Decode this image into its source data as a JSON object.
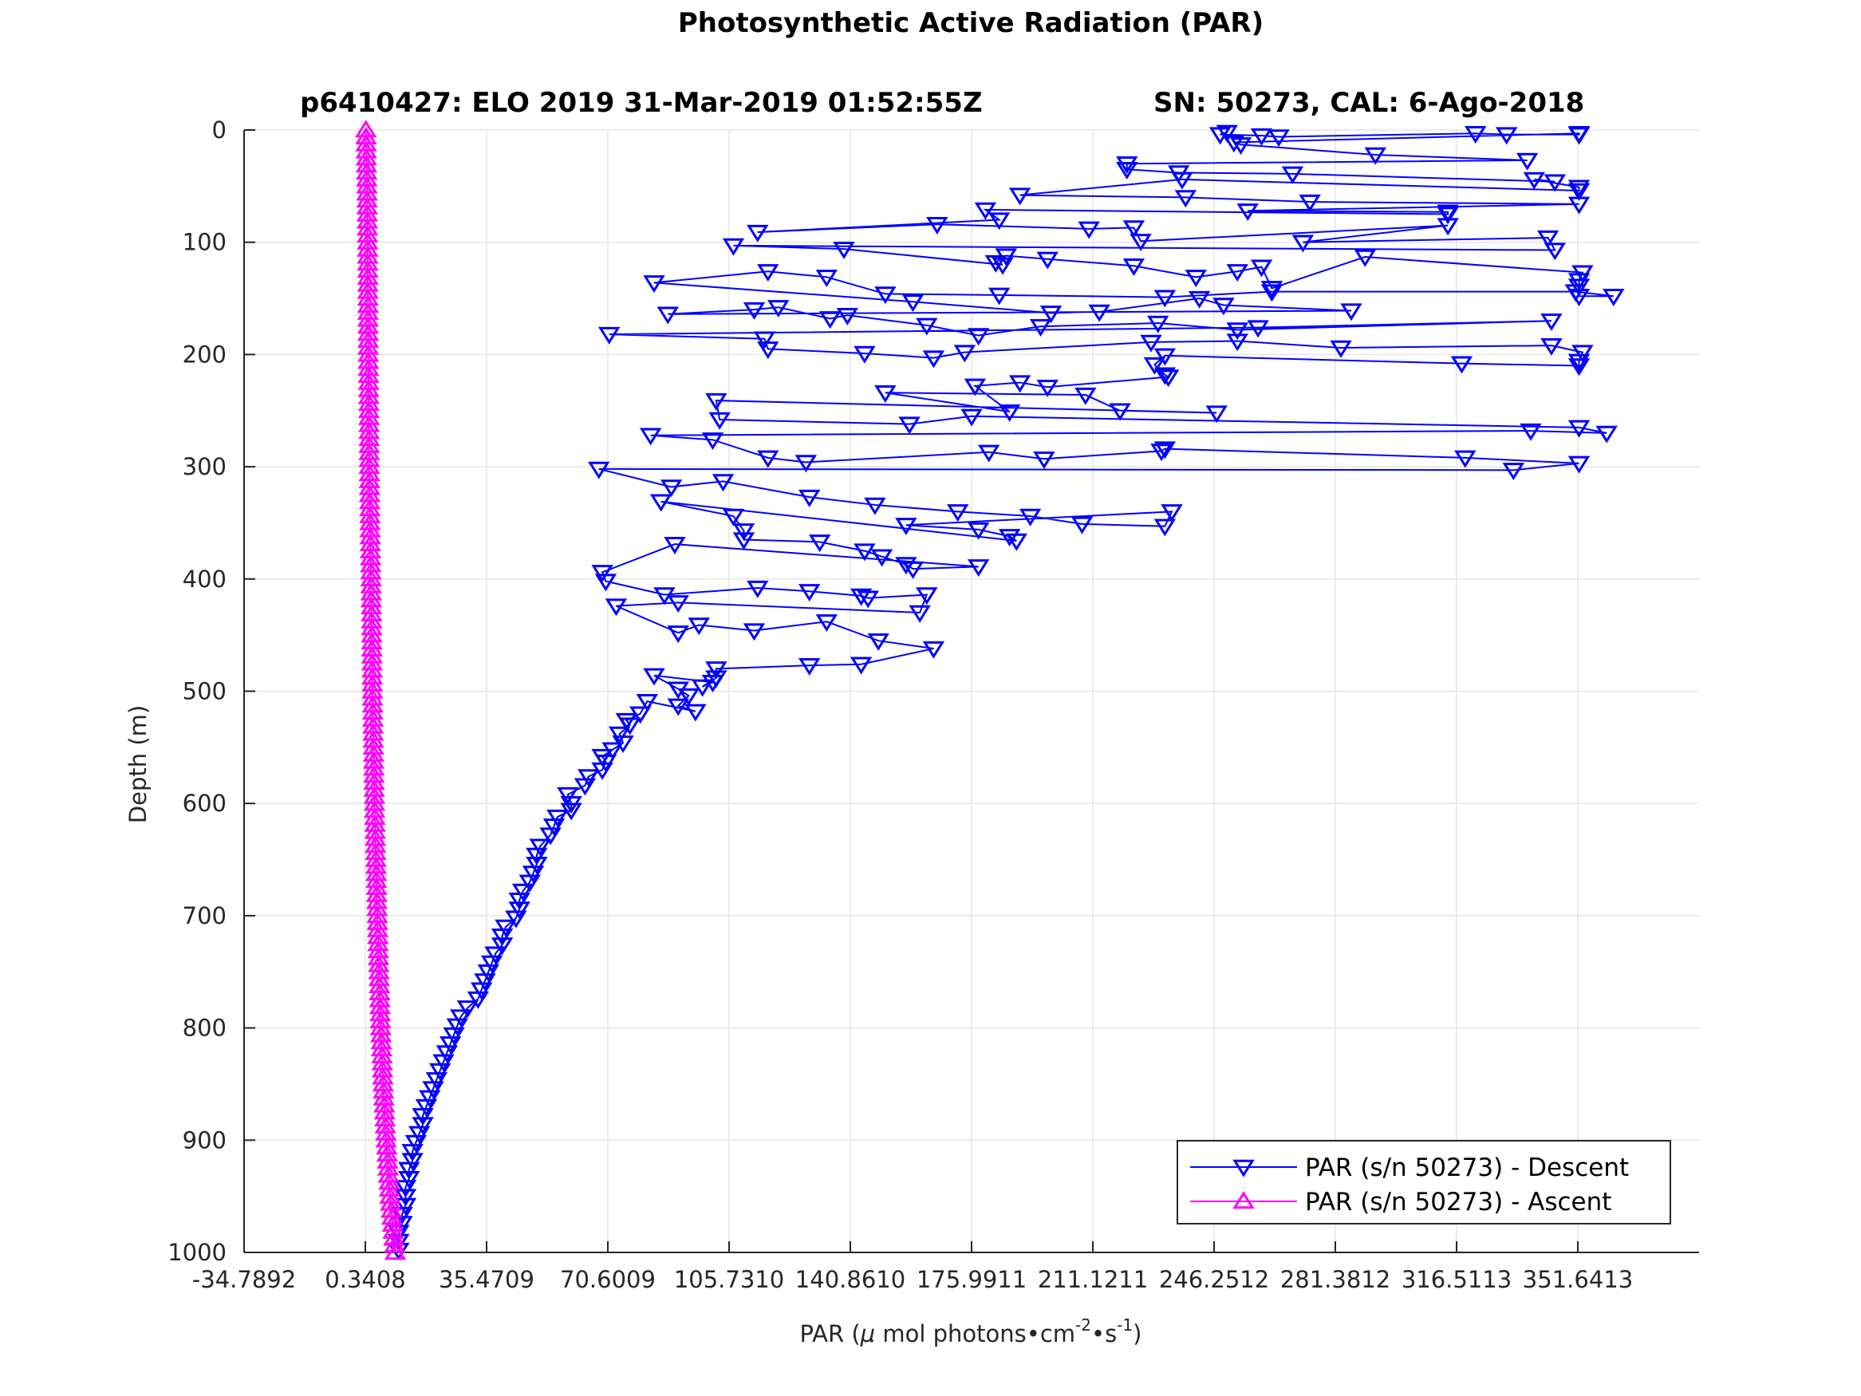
{
  "figure": {
    "title": "Photosynthetic Active Radiation (PAR)",
    "subtitle_left": "p6410427: ELO 2019 31-Mar-2019 01:52:55Z",
    "subtitle_right": "SN: 50273, CAL: 6-Ago-2018"
  },
  "chart_data": {
    "type": "line",
    "xlabel": {
      "prefix": "PAR (",
      "mu": "μ",
      "mid1": " mol photons",
      "bullet1": "•",
      "cm": "cm",
      "sup1": "-2",
      "bullet2": "•",
      "s": "s",
      "sup2": "-1",
      "close": ")"
    },
    "ylabel": "Depth (m)",
    "xlim": [
      -34.7892,
      386.7714
    ],
    "ylim": [
      0,
      1000
    ],
    "y_reversed": true,
    "grid": true,
    "legend_position": "bottom-right",
    "x_ticks": [
      {
        "value": -34.7892,
        "label": "-34.7892"
      },
      {
        "value": 0.3408,
        "label": "0.3408"
      },
      {
        "value": 35.4709,
        "label": "35.4709"
      },
      {
        "value": 70.6009,
        "label": "70.6009"
      },
      {
        "value": 105.731,
        "label": "105.7310"
      },
      {
        "value": 140.861,
        "label": "140.8610"
      },
      {
        "value": 175.9911,
        "label": "175.9911"
      },
      {
        "value": 211.1211,
        "label": "211.1211"
      },
      {
        "value": 246.2512,
        "label": "246.2512"
      },
      {
        "value": 281.3812,
        "label": "281.3812"
      },
      {
        "value": 316.5113,
        "label": "316.5113"
      },
      {
        "value": 351.6413,
        "label": "351.6413"
      }
    ],
    "y_ticks": [
      {
        "value": 0,
        "label": "0"
      },
      {
        "value": 100,
        "label": "100"
      },
      {
        "value": 200,
        "label": "200"
      },
      {
        "value": 300,
        "label": "300"
      },
      {
        "value": 400,
        "label": "400"
      },
      {
        "value": 500,
        "label": "500"
      },
      {
        "value": 600,
        "label": "600"
      },
      {
        "value": 700,
        "label": "700"
      },
      {
        "value": 800,
        "label": "800"
      },
      {
        "value": 900,
        "label": "900"
      },
      {
        "value": 1000,
        "label": "1000"
      }
    ],
    "series": [
      {
        "name": "PAR (s/n 50273) - Descent",
        "color": "#0000ff",
        "marker": "triangle-down",
        "points": [
          [
            250,
            2
          ],
          [
            248,
            4
          ],
          [
            260,
            5
          ],
          [
            265,
            6
          ],
          [
            322,
            3
          ],
          [
            331,
            4
          ],
          [
            352,
            4
          ],
          [
            352,
            3
          ],
          [
            252,
            11
          ],
          [
            254,
            13
          ],
          [
            293,
            22
          ],
          [
            337,
            27
          ],
          [
            221,
            30
          ],
          [
            221,
            35
          ],
          [
            236,
            38
          ],
          [
            269,
            39
          ],
          [
            345,
            46
          ],
          [
            339,
            44
          ],
          [
            352,
            51
          ],
          [
            352,
            54
          ],
          [
            237,
            44
          ],
          [
            190,
            58
          ],
          [
            238,
            60
          ],
          [
            274,
            64
          ],
          [
            352,
            66
          ],
          [
            256,
            72
          ],
          [
            314,
            73
          ],
          [
            314,
            75
          ],
          [
            180,
            71
          ],
          [
            184,
            80
          ],
          [
            114,
            91
          ],
          [
            166,
            84
          ],
          [
            210,
            88
          ],
          [
            223,
            87
          ],
          [
            225,
            99
          ],
          [
            314,
            85
          ],
          [
            272,
            100
          ],
          [
            343,
            96
          ],
          [
            345,
            107
          ],
          [
            107,
            103
          ],
          [
            139,
            106
          ],
          [
            185,
            120
          ],
          [
            183,
            118
          ],
          [
            186,
            112
          ],
          [
            198,
            115
          ],
          [
            223,
            121
          ],
          [
            241,
            131
          ],
          [
            253,
            126
          ],
          [
            260,
            122
          ],
          [
            263,
            141
          ],
          [
            290,
            113
          ],
          [
            353,
            127
          ],
          [
            352,
            134
          ],
          [
            352,
            139
          ],
          [
            352,
            148
          ],
          [
            362,
            148
          ],
          [
            351,
            144
          ],
          [
            263,
            144
          ],
          [
            232,
            149
          ],
          [
            184,
            147
          ],
          [
            151,
            146
          ],
          [
            134,
            131
          ],
          [
            117,
            126
          ],
          [
            84,
            136
          ],
          [
            159,
            153
          ],
          [
            199,
            163
          ],
          [
            213,
            162
          ],
          [
            242,
            150
          ],
          [
            249,
            156
          ],
          [
            286,
            161
          ],
          [
            88,
            164
          ],
          [
            113,
            160
          ],
          [
            120,
            158
          ],
          [
            135,
            168
          ],
          [
            140,
            165
          ],
          [
            163,
            174
          ],
          [
            178,
            183
          ],
          [
            196,
            175
          ],
          [
            230,
            172
          ],
          [
            253,
            178
          ],
          [
            344,
            170
          ],
          [
            259,
            176
          ],
          [
            71,
            182
          ],
          [
            116,
            186
          ],
          [
            117,
            195
          ],
          [
            145,
            199
          ],
          [
            165,
            203
          ],
          [
            174,
            198
          ],
          [
            228,
            189
          ],
          [
            253,
            188
          ],
          [
            283,
            194
          ],
          [
            344,
            192
          ],
          [
            353,
            198
          ],
          [
            352,
            206
          ],
          [
            352,
            210
          ],
          [
            318,
            208
          ],
          [
            232,
            201
          ],
          [
            229,
            209
          ],
          [
            232,
            218
          ],
          [
            233,
            220
          ],
          [
            198,
            229
          ],
          [
            190,
            225
          ],
          [
            177,
            228
          ],
          [
            187,
            251
          ],
          [
            151,
            234
          ],
          [
            209,
            236
          ],
          [
            219,
            250
          ],
          [
            247,
            252
          ],
          [
            102,
            241
          ],
          [
            103,
            258
          ],
          [
            158,
            262
          ],
          [
            176,
            255
          ],
          [
            352,
            265
          ],
          [
            360,
            270
          ],
          [
            338,
            268
          ],
          [
            83,
            272
          ],
          [
            101,
            276
          ],
          [
            117,
            292
          ],
          [
            128,
            296
          ],
          [
            181,
            287
          ],
          [
            197,
            293
          ],
          [
            231,
            286
          ],
          [
            232,
            284
          ],
          [
            319,
            292
          ],
          [
            352,
            297
          ],
          [
            333,
            303
          ],
          [
            68,
            302
          ],
          [
            89,
            318
          ],
          [
            104,
            313
          ],
          [
            129,
            327
          ],
          [
            148,
            334
          ],
          [
            172,
            340
          ],
          [
            193,
            344
          ],
          [
            208,
            351
          ],
          [
            232,
            353
          ],
          [
            234,
            340
          ],
          [
            157,
            352
          ],
          [
            178,
            356
          ],
          [
            187,
            362
          ],
          [
            189,
            366
          ],
          [
            86,
            331
          ],
          [
            107,
            344
          ],
          [
            110,
            357
          ],
          [
            110,
            365
          ],
          [
            132,
            367
          ],
          [
            145,
            375
          ],
          [
            150,
            380
          ],
          [
            157,
            387
          ],
          [
            159,
            391
          ],
          [
            178,
            389
          ],
          [
            90,
            369
          ],
          [
            69,
            394
          ],
          [
            70,
            402
          ],
          [
            87,
            414
          ],
          [
            114,
            408
          ],
          [
            129,
            411
          ],
          [
            144,
            415
          ],
          [
            146,
            417
          ],
          [
            163,
            414
          ],
          [
            161,
            430
          ],
          [
            91,
            421
          ],
          [
            73,
            424
          ],
          [
            91,
            448
          ],
          [
            97,
            441
          ],
          [
            113,
            446
          ],
          [
            134,
            438
          ],
          [
            149,
            455
          ],
          [
            165,
            462
          ],
          [
            144,
            476
          ],
          [
            129,
            477
          ],
          [
            102,
            480
          ],
          [
            102,
            488
          ],
          [
            98,
            496
          ],
          [
            101,
            492
          ],
          [
            84,
            486
          ],
          [
            91,
            498
          ],
          [
            94,
            504
          ],
          [
            91,
            513
          ],
          [
            96,
            518
          ],
          [
            82,
            509
          ],
          [
            80,
            520
          ],
          [
            76,
            526
          ],
          [
            77,
            530
          ],
          [
            74,
            538
          ],
          [
            75,
            546
          ],
          [
            72,
            552
          ],
          [
            69,
            558
          ],
          [
            70,
            563
          ],
          [
            69,
            570
          ],
          [
            65,
            576
          ],
          [
            64,
            584
          ],
          [
            59,
            592
          ],
          [
            60,
            600
          ],
          [
            60,
            606
          ],
          [
            56,
            612
          ],
          [
            55,
            620
          ],
          [
            54,
            628
          ],
          [
            51,
            638
          ],
          [
            50,
            646
          ],
          [
            50,
            654
          ],
          [
            49,
            662
          ],
          [
            48,
            670
          ],
          [
            46,
            678
          ],
          [
            45,
            686
          ],
          [
            45,
            694
          ],
          [
            44,
            702
          ],
          [
            41,
            710
          ],
          [
            40,
            718
          ],
          [
            40,
            726
          ],
          [
            38,
            734
          ],
          [
            37,
            742
          ],
          [
            36,
            750
          ],
          [
            35,
            758
          ],
          [
            34,
            766
          ],
          [
            33,
            774
          ],
          [
            30,
            782
          ],
          [
            28,
            790
          ],
          [
            27,
            798
          ],
          [
            26,
            806
          ],
          [
            25,
            814
          ],
          [
            24,
            822
          ],
          [
            23,
            830
          ],
          [
            22,
            838
          ],
          [
            21,
            846
          ],
          [
            20,
            854
          ],
          [
            19,
            862
          ],
          [
            18,
            870
          ],
          [
            17,
            878
          ],
          [
            17,
            886
          ],
          [
            16,
            894
          ],
          [
            15,
            902
          ],
          [
            14,
            910
          ],
          [
            14,
            918
          ],
          [
            13,
            926
          ],
          [
            13,
            934
          ],
          [
            12,
            942
          ],
          [
            12,
            950
          ],
          [
            12,
            958
          ],
          [
            11,
            966
          ],
          [
            11,
            974
          ],
          [
            10,
            982
          ],
          [
            10,
            990
          ],
          [
            10,
            998
          ]
        ]
      },
      {
        "name": "PAR (s/n 50273) - Ascent",
        "color": "#ff00ff",
        "marker": "triangle-up",
        "points": [
          [
            0.5,
            0
          ],
          [
            0.8,
            50
          ],
          [
            1.0,
            100
          ],
          [
            1.1,
            150
          ],
          [
            1.2,
            200
          ],
          [
            1.4,
            250
          ],
          [
            1.5,
            300
          ],
          [
            1.7,
            350
          ],
          [
            2.0,
            400
          ],
          [
            2.2,
            450
          ],
          [
            2.4,
            500
          ],
          [
            2.7,
            550
          ],
          [
            3.0,
            600
          ],
          [
            3.4,
            650
          ],
          [
            3.8,
            700
          ],
          [
            4.3,
            750
          ],
          [
            4.8,
            800
          ],
          [
            5.5,
            850
          ],
          [
            6.4,
            900
          ],
          [
            7.5,
            950
          ],
          [
            9.0,
            1000
          ]
        ]
      }
    ]
  }
}
